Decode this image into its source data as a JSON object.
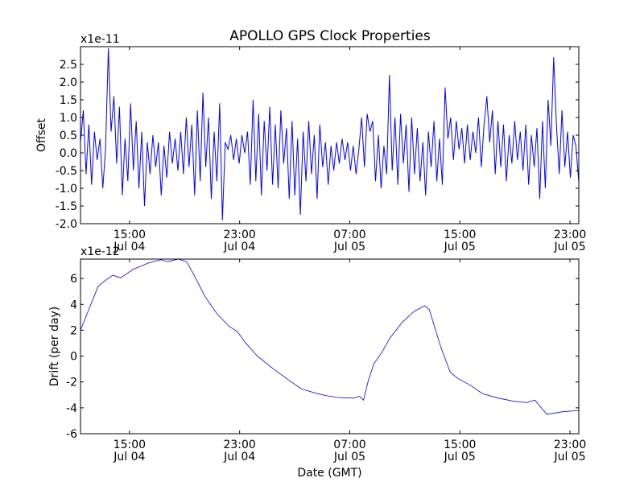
{
  "title": "APOLLO GPS Clock Properties",
  "chart_data": [
    {
      "type": "line",
      "name": "offset",
      "ylabel": "Offset",
      "scale_label": "x1e-11",
      "xlim": [
        11.44,
        47.64
      ],
      "ylim": [
        -2.0,
        3.0
      ],
      "x_unit": "hours since Jul 04 00:00 GMT",
      "yticks": [
        -2.0,
        -1.5,
        -1.0,
        -0.5,
        0.0,
        0.5,
        1.0,
        1.5,
        2.0,
        2.5
      ],
      "ytick_labels": [
        "-2.0",
        "-1.5",
        "-1.0",
        "-0.5",
        "0.0",
        "0.5",
        "1.0",
        "1.5",
        "2.0",
        "2.5"
      ],
      "xticks": [
        15,
        23,
        31,
        39,
        47
      ],
      "xtick_labels": [
        [
          "15:00",
          "Jul 04"
        ],
        [
          "23:00",
          "Jul 04"
        ],
        [
          "07:00",
          "Jul 05"
        ],
        [
          "15:00",
          "Jul 05"
        ],
        [
          "23:00",
          "Jul 05"
        ]
      ],
      "color": "#0000ff",
      "x_start": 11.44,
      "x_step": 0.2022,
      "values": [
        0.3,
        1.2,
        -0.6,
        0.8,
        -0.9,
        0.6,
        -0.2,
        0.4,
        -1.0,
        0.1,
        2.95,
        0.6,
        1.6,
        -0.3,
        1.3,
        -1.2,
        0.4,
        -0.8,
        1.4,
        -0.5,
        0.9,
        -1.0,
        0.6,
        -1.5,
        0.3,
        -0.6,
        0.5,
        -0.4,
        0.3,
        -1.2,
        0.2,
        -0.7,
        0.6,
        -0.3,
        0.4,
        -0.5,
        0.6,
        -0.6,
        1.0,
        -0.4,
        0.8,
        -1.2,
        1.2,
        -0.8,
        1.7,
        -0.4,
        1.0,
        -1.3,
        0.6,
        -0.8,
        1.4,
        -1.9,
        0.3,
        0.1,
        0.5,
        -0.2,
        0.4,
        -0.3,
        0.5,
        0.0,
        0.6,
        -0.9,
        1.5,
        -0.8,
        1.1,
        -1.2,
        0.9,
        -0.5,
        1.3,
        -0.9,
        0.8,
        -1.0,
        1.2,
        -0.3,
        0.7,
        -1.3,
        0.9,
        -1.2,
        0.4,
        -1.75,
        0.6,
        -0.8,
        0.9,
        -0.6,
        0.5,
        -1.3,
        0.8,
        -0.4,
        0.3,
        -0.9,
        0.2,
        -0.5,
        0.3,
        -0.3,
        0.4,
        -0.2,
        0.3,
        -0.5,
        0.2,
        -0.6,
        0.1,
        1.0,
        -0.4,
        1.1,
        0.6,
        0.9,
        -0.8,
        0.5,
        -1.0,
        0.2,
        -0.6,
        2.2,
        -0.5,
        1.0,
        -0.9,
        1.1,
        -0.3,
        0.8,
        -1.1,
        1.0,
        -0.6,
        0.7,
        -0.8,
        0.3,
        -1.2,
        0.6,
        -0.4,
        0.9,
        -0.8,
        0.4,
        -0.9,
        1.85,
        0.4,
        1.0,
        -0.2,
        0.9,
        0.1,
        0.7,
        -0.3,
        0.8,
        -0.2,
        0.6,
        0.0,
        1.0,
        -0.4,
        0.8,
        1.6,
        0.3,
        1.2,
        -0.6,
        0.9,
        -0.4,
        0.8,
        -0.8,
        0.5,
        -0.3,
        0.9,
        -0.2,
        0.6,
        -0.5,
        0.8,
        -0.9,
        0.5,
        -0.4,
        0.7,
        -1.3,
        0.9,
        -1.0,
        1.5,
        0.2,
        2.7,
        0.8,
        -0.6,
        1.2,
        -0.4,
        0.6,
        -0.7,
        0.5,
        0.2,
        -0.8
      ]
    },
    {
      "type": "line",
      "name": "drift",
      "ylabel": "Drift (per day)",
      "xlabel": "Date (GMT)",
      "scale_label": "x1e-12",
      "xlim": [
        11.44,
        47.64
      ],
      "ylim": [
        -6,
        7.5
      ],
      "x_unit": "hours since Jul 04 00:00 GMT",
      "yticks": [
        -6,
        -4,
        -2,
        0,
        2,
        4,
        6
      ],
      "ytick_labels": [
        "-6",
        "-4",
        "-2",
        "0",
        "2",
        "4",
        "6"
      ],
      "xticks": [
        15,
        23,
        31,
        39,
        47
      ],
      "xtick_labels": [
        [
          "15:00",
          "Jul 04"
        ],
        [
          "23:00",
          "Jul 04"
        ],
        [
          "07:00",
          "Jul 05"
        ],
        [
          "15:00",
          "Jul 05"
        ],
        [
          "23:00",
          "Jul 05"
        ]
      ],
      "color": "#0000ff",
      "x": [
        11.44,
        12.72,
        13.19,
        13.78,
        14.36,
        15.24,
        16.4,
        17.28,
        17.75,
        18.56,
        19.15,
        19.62,
        20.49,
        21.37,
        22.24,
        22.83,
        23.41,
        24.29,
        25.46,
        26.62,
        27.5,
        28.67,
        29.25,
        30.13,
        31.29,
        31.7,
        32.0,
        32.35,
        32.75,
        33.34,
        33.92,
        34.8,
        35.67,
        36.43,
        36.78,
        37.6,
        38.3,
        38.88,
        39.76,
        40.64,
        41.8,
        42.97,
        43.85,
        44.44,
        45.31,
        46.48,
        47.64
      ],
      "y": [
        2.0,
        5.4,
        5.8,
        6.25,
        6.05,
        6.7,
        7.2,
        7.45,
        7.3,
        7.5,
        7.3,
        6.4,
        4.6,
        3.25,
        2.3,
        1.9,
        1.05,
        0.0,
        -1.0,
        -1.9,
        -2.55,
        -2.9,
        -3.05,
        -3.2,
        -3.25,
        -3.1,
        -3.4,
        -1.9,
        -0.6,
        0.3,
        1.4,
        2.6,
        3.45,
        3.9,
        3.6,
        0.75,
        -1.25,
        -1.75,
        -2.25,
        -2.9,
        -3.25,
        -3.5,
        -3.6,
        -3.4,
        -4.5,
        -4.3,
        -4.2
      ]
    }
  ]
}
